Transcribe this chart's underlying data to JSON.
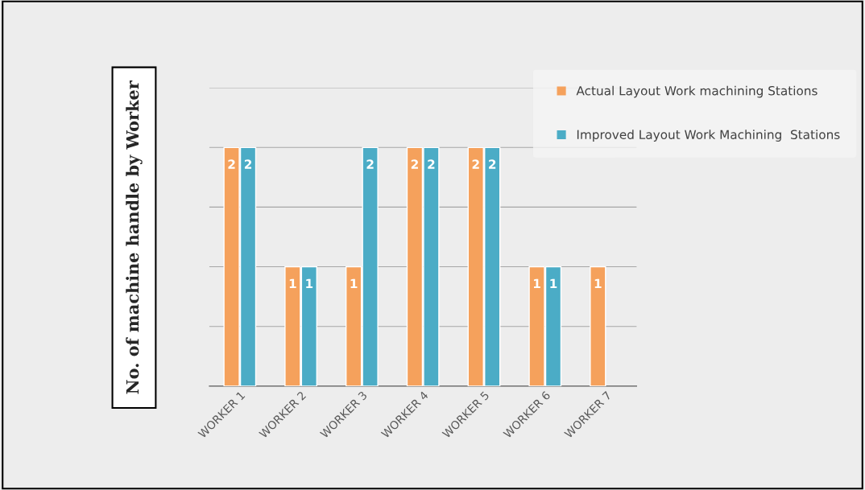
{
  "chart_data": {
    "type": "bar",
    "ylabel": "No. of machine handle by Worker",
    "categories": [
      "WORKER 1",
      "WORKER 2",
      "WORKER 3",
      "WORKER 4",
      "WORKER 5",
      "WORKER 6",
      "WORKER 7"
    ],
    "series": [
      {
        "name": "Actual Layout Work machining Stations",
        "color": "#f5a15c",
        "values": [
          2,
          1,
          1,
          2,
          2,
          1,
          1
        ]
      },
      {
        "name": "Improved Layout Work Machining  Stations",
        "color": "#4bacc6",
        "values": [
          2,
          1,
          2,
          2,
          2,
          1,
          null
        ]
      }
    ],
    "ylim": [
      0,
      2.5
    ],
    "yticks": [
      {
        "value": 0.5,
        "label": null
      },
      {
        "value": 1,
        "label": null
      },
      {
        "value": 1.5,
        "label": null
      },
      {
        "value": 2,
        "label": null
      },
      {
        "value": 2.5,
        "label": null
      }
    ],
    "tick_labels": "x",
    "grid": "y",
    "legend": "top right",
    "data_labels": true
  }
}
